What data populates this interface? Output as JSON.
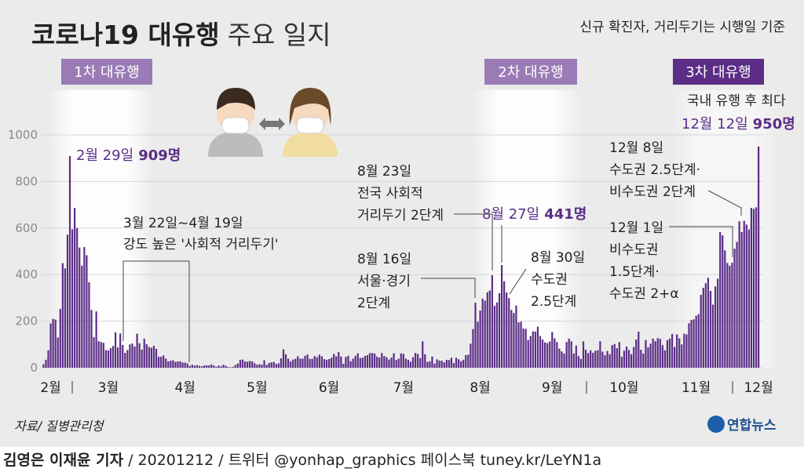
{
  "chart_data": {
    "type": "bar",
    "title": [
      "코로나19 대유행",
      "주요 일지"
    ],
    "subtitle": "신규 확진자, 거리두기는 시행일 기준",
    "waves": [
      "1차 대유행",
      "2차 대유행",
      "3차 대유행"
    ],
    "color": "#5b2d86",
    "ylim": [
      0,
      1100
    ],
    "yticks": [
      0,
      200,
      400,
      600,
      800,
      1000
    ],
    "grid": true,
    "categories": [
      null,
      null,
      null,
      "2월",
      null,
      null,
      null,
      null,
      null,
      null,
      null,
      null,
      null,
      null,
      null,
      null,
      null,
      null,
      null,
      null,
      null,
      null,
      null,
      null,
      null,
      null,
      null,
      "3월",
      null,
      null,
      null,
      null,
      null,
      null,
      null,
      null,
      null,
      null,
      null,
      null,
      null,
      null,
      null,
      null,
      null,
      null,
      null,
      null,
      null,
      null,
      null,
      null,
      null,
      null,
      null,
      null,
      null,
      null,
      null,
      "4월",
      null,
      null,
      null,
      null,
      null,
      null,
      null,
      null,
      null,
      null,
      null,
      null,
      null,
      null,
      null,
      null,
      null,
      null,
      null,
      null,
      null,
      null,
      null,
      null,
      null,
      null,
      null,
      null,
      null,
      "5월",
      null,
      null,
      null,
      null,
      null,
      null,
      null,
      null,
      null,
      null,
      null,
      null,
      null,
      null,
      null,
      null,
      null,
      null,
      null,
      null,
      null,
      null,
      null,
      null,
      null,
      null,
      null,
      null,
      null,
      "6월",
      null,
      null,
      null,
      null,
      null,
      null,
      null,
      null,
      null,
      null,
      null,
      null,
      null,
      null,
      null,
      null,
      null,
      null,
      null,
      null,
      null,
      null,
      null,
      null,
      null,
      null,
      null,
      null,
      null,
      null,
      "7월",
      null,
      null,
      null,
      null,
      null,
      null,
      null,
      null,
      null,
      null,
      null,
      null,
      null,
      null,
      null,
      null,
      null,
      null,
      null,
      null,
      null,
      null,
      null,
      null,
      null,
      null,
      null,
      null,
      null,
      null,
      null,
      "8월",
      null,
      null,
      null,
      null,
      null,
      null,
      null,
      null,
      null,
      null,
      null,
      null,
      null,
      null,
      null,
      null,
      null,
      null,
      null,
      null,
      null,
      null,
      null,
      null,
      null,
      null,
      null,
      null,
      null,
      "9월",
      null,
      null,
      null,
      null,
      null,
      null,
      null,
      null,
      null,
      null,
      null,
      null,
      null,
      null,
      null,
      null,
      null,
      null,
      null,
      null,
      null,
      null,
      null,
      null,
      null,
      null,
      null,
      null,
      null,
      "10월",
      null,
      null,
      null,
      null,
      null,
      null,
      null,
      null,
      null,
      null,
      null,
      null,
      null,
      null,
      null,
      null,
      null,
      null,
      null,
      null,
      null,
      null,
      null,
      null,
      null,
      null,
      null,
      null,
      null,
      "11월",
      null,
      null,
      null,
      null,
      null,
      null,
      null,
      null,
      null,
      null,
      null,
      null,
      null,
      null,
      null,
      null,
      null,
      null,
      null,
      null,
      null,
      null,
      null,
      null,
      null,
      "12월"
    ],
    "values": [
      15,
      34,
      75,
      190,
      210,
      207,
      130,
      253,
      449,
      427,
      571,
      909,
      595,
      686,
      600,
      516,
      438,
      518,
      483,
      367,
      248,
      131,
      242,
      114,
      110,
      107,
      76,
      74,
      84,
      93,
      152,
      87,
      147,
      98,
      64,
      76,
      100,
      104,
      91,
      146,
      105,
      78,
      125,
      101,
      89,
      86,
      94,
      81,
      47,
      47,
      53,
      39,
      27,
      30,
      32,
      25,
      27,
      27,
      22,
      22,
      18,
      8,
      13,
      9,
      11,
      8,
      6,
      10,
      10,
      10,
      14,
      9,
      4,
      9,
      6,
      13,
      8,
      3,
      2,
      4,
      12,
      18,
      34,
      35,
      27,
      26,
      29,
      27,
      19,
      13,
      15,
      13,
      32,
      12,
      20,
      23,
      25,
      16,
      19,
      40,
      79,
      58,
      39,
      27,
      35,
      38,
      49,
      39,
      39,
      51,
      57,
      38,
      38,
      50,
      45,
      56,
      49,
      37,
      34,
      37,
      43,
      59,
      49,
      67,
      48,
      17,
      46,
      51,
      28,
      39,
      51,
      62,
      42,
      43,
      51,
      54,
      63,
      63,
      61,
      48,
      44,
      63,
      50,
      45,
      35,
      44,
      62,
      33,
      39,
      61,
      60,
      39,
      34,
      26,
      45,
      63,
      59,
      41,
      113,
      58,
      25,
      28,
      48,
      18,
      36,
      31,
      30,
      23,
      34,
      33,
      43,
      20,
      43,
      36,
      28,
      34,
      54,
      56,
      103,
      166,
      279,
      197,
      246,
      297,
      288,
      324,
      332,
      397,
      266,
      280,
      320,
      441,
      371,
      323,
      299,
      248,
      235,
      267,
      195,
      198,
      168,
      167,
      119,
      136,
      156,
      155,
      176,
      136,
      121,
      109,
      106,
      113,
      153,
      126,
      110,
      82,
      70,
      61,
      110,
      125,
      114,
      61,
      95,
      50,
      38,
      113,
      77,
      63,
      75,
      64,
      73,
      75,
      114,
      69,
      54,
      72,
      58,
      97,
      102,
      84,
      110,
      47,
      73,
      91,
      76,
      58,
      89,
      121,
      155,
      77,
      61,
      119,
      88,
      103,
      125,
      114,
      127,
      124,
      97,
      75,
      118,
      125,
      145,
      89,
      143,
      126,
      100,
      146,
      143,
      191,
      205,
      208,
      223,
      230,
      313,
      343,
      363,
      386,
      330,
      271,
      349,
      382,
      583,
      569,
      504,
      450,
      438,
      451,
      511,
      540,
      629,
      583,
      631,
      615,
      594,
      686,
      682,
      689,
      950
    ],
    "peaks": [
      {
        "date": "2월 29일",
        "label": "909명"
      },
      {
        "date": "8월 27일",
        "label": "441명"
      },
      {
        "date": "12월 12일",
        "label": "950명"
      }
    ],
    "annotations": [
      {
        "lines": [
          "3월 22일~4월 19일",
          "강도 높은 '사회적 거리두기'"
        ]
      },
      {
        "lines": [
          "8월 16일",
          "서울·경기",
          "2단계"
        ]
      },
      {
        "lines": [
          "8월 23일",
          "전국 사회적",
          "거리두기 2단계"
        ]
      },
      {
        "lines": [
          "8월 30일",
          "수도권",
          "2.5단계"
        ]
      },
      {
        "lines": [
          "12월 1일",
          "비수도권",
          "1.5단계·",
          "수도권 2+α"
        ]
      },
      {
        "lines": [
          "12월 8일",
          "수도권 2.5단계·",
          "비수도권 2단계"
        ]
      },
      {
        "lines": [
          "국내 유행 후 최다"
        ]
      }
    ],
    "source": "자료/ 질병관리청",
    "logo": "연합뉴스",
    "byline": "김영은 이재윤 기자",
    "credits": "/ 20201212 / 트위터 @yonhap_graphics  페이스북 tuney.kr/LeYN1a"
  }
}
